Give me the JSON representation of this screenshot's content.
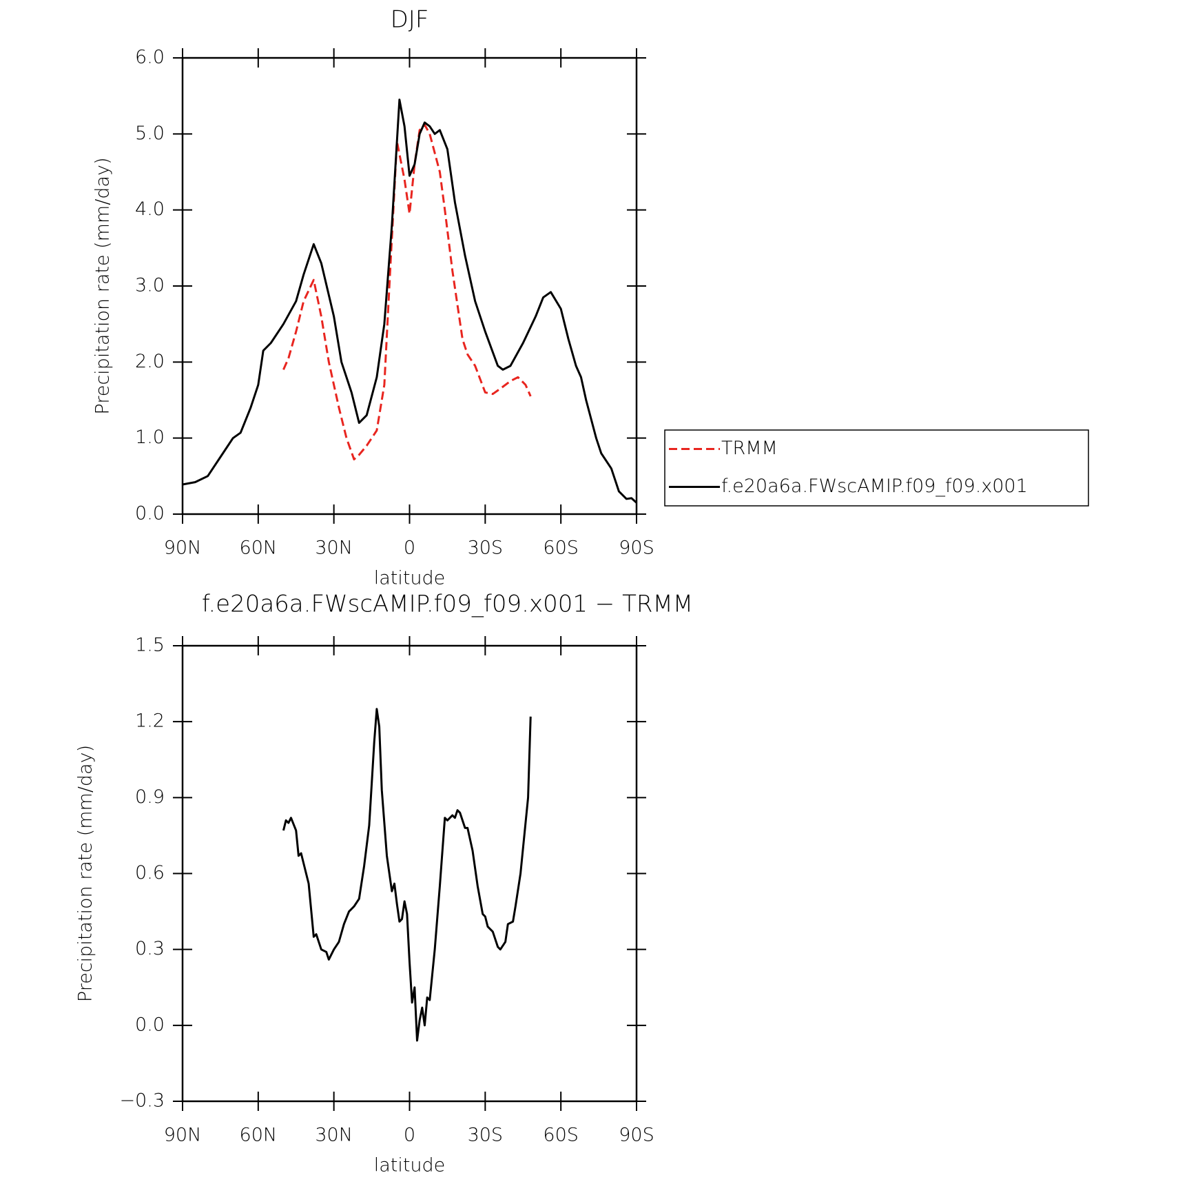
{
  "chart_data": [
    {
      "type": "line",
      "title": "DJF",
      "xlabel": "latitude",
      "ylabel": "Precipitation rate (mm/day)",
      "xlim": [
        90,
        -90
      ],
      "xticks": [
        {
          "value": 90,
          "label": "90N"
        },
        {
          "value": 60,
          "label": "60N"
        },
        {
          "value": 30,
          "label": "30N"
        },
        0,
        {
          "value": -30,
          "label": "30S"
        },
        {
          "value": -60,
          "label": "60S"
        },
        {
          "value": -90,
          "label": "90S"
        }
      ],
      "ylim": [
        0,
        6
      ],
      "yticks": [
        {
          "value": 0,
          "label": "0.0"
        },
        {
          "value": 1,
          "label": "1.0"
        },
        {
          "value": 2,
          "label": "2.0"
        },
        {
          "value": 3,
          "label": "3.0"
        },
        {
          "value": 4,
          "label": "4.0"
        },
        {
          "value": 5,
          "label": "5.0"
        },
        {
          "value": 6,
          "label": "6.0"
        }
      ],
      "legend": "right",
      "series": [
        {
          "name": "TRMM",
          "color": "#e8251f",
          "dashed": true,
          "x": [
            50,
            48,
            45,
            42,
            38,
            35,
            32,
            28,
            25,
            22,
            20,
            17,
            13,
            10,
            8,
            5,
            2,
            0,
            -2,
            -4,
            -6,
            -8,
            -12,
            -14,
            -17,
            -21,
            -23,
            -26,
            -30,
            -33,
            -36,
            -40,
            -43,
            -46,
            -48
          ],
          "values": [
            1.9,
            2.05,
            2.4,
            2.8,
            3.08,
            2.6,
            2.0,
            1.4,
            1.0,
            0.72,
            0.78,
            0.9,
            1.1,
            1.7,
            3.0,
            4.9,
            4.4,
            3.95,
            4.6,
            5.05,
            5.12,
            5.0,
            4.5,
            4.0,
            3.2,
            2.3,
            2.1,
            1.95,
            1.6,
            1.58,
            1.65,
            1.75,
            1.8,
            1.7,
            1.55
          ]
        },
        {
          "name": "f.e20a6a.FWscAMIP.f09_f09.x001",
          "color": "#000000",
          "dashed": false,
          "x": [
            90,
            85,
            80,
            75,
            70,
            67,
            63,
            60,
            58,
            55,
            50,
            45,
            42,
            38,
            35,
            30,
            27,
            23,
            20,
            17,
            13,
            10,
            7,
            4,
            2,
            0,
            -2,
            -4,
            -6,
            -8,
            -10,
            -12,
            -15,
            -18,
            -22,
            -26,
            -30,
            -35,
            -37,
            -40,
            -45,
            -50,
            -53,
            -56,
            -60,
            -63,
            -66,
            -68,
            -70,
            -74,
            -76,
            -80,
            -83,
            -86,
            -88,
            -90
          ],
          "values": [
            0.39,
            0.42,
            0.5,
            0.75,
            1.0,
            1.07,
            1.4,
            1.7,
            2.15,
            2.25,
            2.5,
            2.8,
            3.15,
            3.55,
            3.3,
            2.6,
            2.0,
            1.6,
            1.2,
            1.3,
            1.8,
            2.5,
            3.8,
            5.45,
            5.1,
            4.45,
            4.6,
            5.0,
            5.15,
            5.1,
            5.0,
            5.05,
            4.8,
            4.1,
            3.4,
            2.8,
            2.4,
            1.95,
            1.9,
            1.95,
            2.25,
            2.6,
            2.85,
            2.92,
            2.7,
            2.3,
            1.95,
            1.8,
            1.5,
            1.0,
            0.8,
            0.6,
            0.3,
            0.2,
            0.21,
            0.15
          ]
        }
      ]
    },
    {
      "type": "line",
      "title": "f.e20a6a.FWscAMIP.f09_f09.x001 − TRMM",
      "xlabel": "latitude",
      "ylabel": "Precipitation rate (mm/day)",
      "xlim": [
        90,
        -90
      ],
      "xticks": [
        {
          "value": 90,
          "label": "90N"
        },
        {
          "value": 60,
          "label": "60N"
        },
        {
          "value": 30,
          "label": "30N"
        },
        0,
        {
          "value": -30,
          "label": "30S"
        },
        {
          "value": -60,
          "label": "60S"
        },
        {
          "value": -90,
          "label": "90S"
        }
      ],
      "ylim": [
        -0.3,
        1.5
      ],
      "yticks": [
        {
          "value": -0.3,
          "label": "−0.3"
        },
        {
          "value": 0,
          "label": "0.0"
        },
        0.3,
        0.6,
        0.9,
        1.2,
        1.5
      ],
      "series": [
        {
          "color": "#000000",
          "dashed": false,
          "x": [
            50,
            49,
            48,
            47,
            45,
            44,
            43,
            42,
            40,
            38,
            37,
            35,
            33,
            32,
            30,
            28,
            26,
            24,
            22,
            20,
            18,
            16,
            14,
            13,
            12,
            11,
            9,
            7,
            6,
            5,
            4,
            3,
            2,
            1,
            0,
            -1,
            -2,
            -3,
            -4,
            -5,
            -6,
            -7,
            -8,
            -10,
            -12,
            -14,
            -15,
            -17,
            -18,
            -19,
            -20,
            -22,
            -23,
            -25,
            -27,
            -29,
            -30,
            -31,
            -33,
            -35,
            -36,
            -38,
            -39,
            -41,
            -42,
            -44,
            -45,
            -47,
            -48
          ],
          "values": [
            0.77,
            0.81,
            0.8,
            0.82,
            0.77,
            0.67,
            0.68,
            0.64,
            0.56,
            0.35,
            0.36,
            0.3,
            0.29,
            0.26,
            0.3,
            0.33,
            0.4,
            0.45,
            0.47,
            0.5,
            0.63,
            0.79,
            1.12,
            1.25,
            1.18,
            0.93,
            0.67,
            0.53,
            0.56,
            0.48,
            0.41,
            0.42,
            0.49,
            0.44,
            0.25,
            0.09,
            0.15,
            -0.06,
            0.02,
            0.07,
            0.0,
            0.11,
            0.1,
            0.3,
            0.55,
            0.82,
            0.81,
            0.83,
            0.82,
            0.85,
            0.84,
            0.78,
            0.78,
            0.69,
            0.55,
            0.44,
            0.43,
            0.39,
            0.37,
            0.31,
            0.3,
            0.33,
            0.4,
            0.41,
            0.47,
            0.6,
            0.7,
            0.9,
            1.22
          ]
        }
      ]
    }
  ]
}
